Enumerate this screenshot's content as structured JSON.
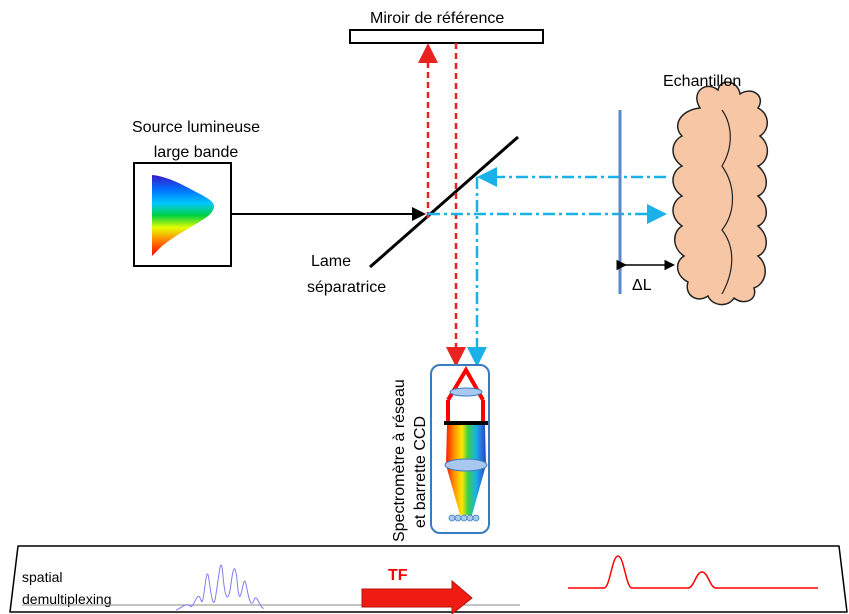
{
  "labels": {
    "reference_mirror": "Miroir de référence",
    "sample": "Echantillon",
    "source_line1": "Source lumineuse",
    "source_line2": "large bande",
    "splitter_line1": "Lame",
    "splitter_line2": "séparatrice",
    "delta_l": "ΔL",
    "spectrometer_line1": "Spectromètre à réseau",
    "spectrometer_line2": "et barrette CCD",
    "demux_line1": "spatial",
    "demux_line2": "demultiplexing",
    "tf": "TF"
  },
  "colors": {
    "reference_arm": "#e8231f",
    "sample_arm": "#19b1e8",
    "sample_fill": "#f7c6a5",
    "sample_outline": "#222222",
    "spectrometer_box": "#3a7bbf",
    "tf_arrow": "#ee1c12",
    "peak_line": "#ff0000",
    "interferogram": "#7d7df0"
  }
}
